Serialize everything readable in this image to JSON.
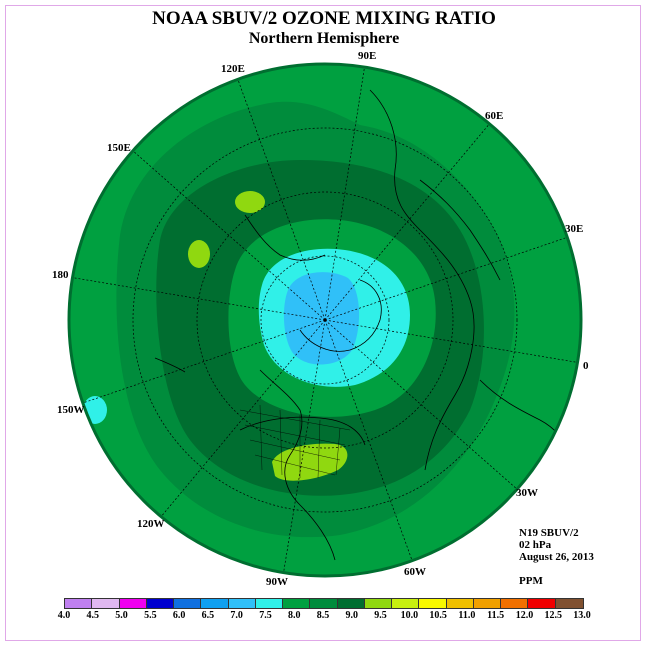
{
  "title": "NOAA SBUV/2 OZONE MIXING RATIO",
  "subtitle": "Northern Hemisphere",
  "longitude_labels": [
    "90E",
    "60E",
    "30E",
    "0",
    "30W",
    "60W",
    "90W",
    "120W",
    "150W",
    "180",
    "150E",
    "120E"
  ],
  "info": {
    "satellite": "N19 SBUV/2",
    "level": "02 hPa",
    "date": "August 26, 2013",
    "units": "PPM"
  },
  "colorbar": {
    "labels": [
      "4.0",
      "4.5",
      "5.0",
      "5.5",
      "6.0",
      "6.5",
      "7.0",
      "7.5",
      "8.0",
      "8.5",
      "9.0",
      "9.5",
      "10.0",
      "10.5",
      "11.0",
      "11.5",
      "12.0",
      "12.5",
      "13.0"
    ],
    "colors": [
      "#c080f0",
      "#e0b8f0",
      "#f000f0",
      "#0000d0",
      "#1070e0",
      "#10a0f0",
      "#30c0f8",
      "#30f0e8",
      "#00a040",
      "#008c3c",
      "#006e30",
      "#90d810",
      "#c8f010",
      "#f8f800",
      "#f0c000",
      "#f0a000",
      "#f07000",
      "#f00000",
      "#805030"
    ]
  },
  "map": {
    "field_colors": {
      "lt_7_5": "#30c0f8",
      "7_5_to_8_0": "#30f0e8",
      "8_0_to_8_5": "#00a040",
      "8_5_to_9_0": "#008c3c",
      "9_0_to_9_5": "#006e30",
      "9_5_to_10_0": "#90d810"
    }
  }
}
